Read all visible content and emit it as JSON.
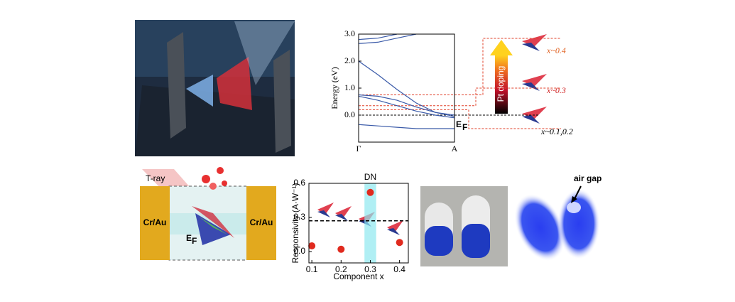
{
  "chart_data": [
    {
      "type": "line",
      "ylabel": "Energy (eV)",
      "x": [
        0,
        0.2,
        0.4,
        0.6,
        0.8,
        1
      ],
      "xlim": [
        0,
        1
      ],
      "xticks": [
        {
          "value": 0,
          "label": "Γ"
        },
        {
          "value": 1,
          "label": "A"
        }
      ],
      "ylim": [
        -1,
        3
      ],
      "yticks": [
        {
          "value": 0,
          "label": "0.0"
        },
        {
          "value": 1,
          "label": "1.0"
        },
        {
          "value": 2,
          "label": "2.0"
        },
        {
          "value": 3,
          "label": "3.0"
        }
      ],
      "color": "#3a5aa8",
      "series": [
        {
          "values": [
            -0.35,
            -0.4,
            -0.45,
            -0.5,
            -0.5,
            -0.5
          ]
        },
        {
          "values": [
            0.7,
            0.55,
            0.35,
            0.15,
            0.0,
            -0.1
          ]
        },
        {
          "values": [
            0.75,
            0.7,
            0.55,
            0.3,
            0.1,
            0.0
          ]
        },
        {
          "values": [
            2.0,
            1.5,
            0.95,
            0.45,
            0.1,
            -0.05
          ]
        },
        {
          "values": [
            2.65,
            2.7,
            2.85,
            3.0,
            null,
            null
          ]
        },
        {
          "values": [
            2.8,
            2.85,
            3.0,
            null,
            null,
            null
          ]
        }
      ],
      "fermi_level": 0,
      "doping_levels": [
        0.2,
        0.35,
        0.75
      ],
      "level_color": "#e0402a"
    },
    {
      "type": "scatter",
      "title": "DN",
      "xlabel": "Component x",
      "ylabel": "Responsivity (A·W⁻¹)",
      "x": [
        0.1,
        0.2,
        0.3,
        0.4
      ],
      "values": [
        0.05,
        0.02,
        0.52,
        0.08
      ],
      "color": "#e02a1e",
      "xlim": [
        0.09,
        0.43
      ],
      "xticks": [
        0.1,
        0.2,
        0.3,
        0.4
      ],
      "ylim": [
        -0.1,
        0.6
      ],
      "yticks": [
        {
          "value": 0,
          "label": "0.0"
        },
        {
          "value": 0.3,
          "label": "0.3"
        },
        {
          "value": 0.6,
          "label": "0.6"
        }
      ],
      "reference": 0.27,
      "highlight": [
        0.28,
        0.32
      ]
    }
  ],
  "annotations": {
    "ef_main": "E",
    "ef_sub": "F",
    "pt_doping": "Pt doping",
    "x04": "x~0.4",
    "x03": "x~0.3",
    "x0102": "x~0.1,0.2",
    "tray": "T-ray",
    "cr_left": "Cr/Au",
    "cr_right": "Cr/Au",
    "ef_dev": "E",
    "ef_dev_sub": "F",
    "air_gap": "air gap"
  }
}
